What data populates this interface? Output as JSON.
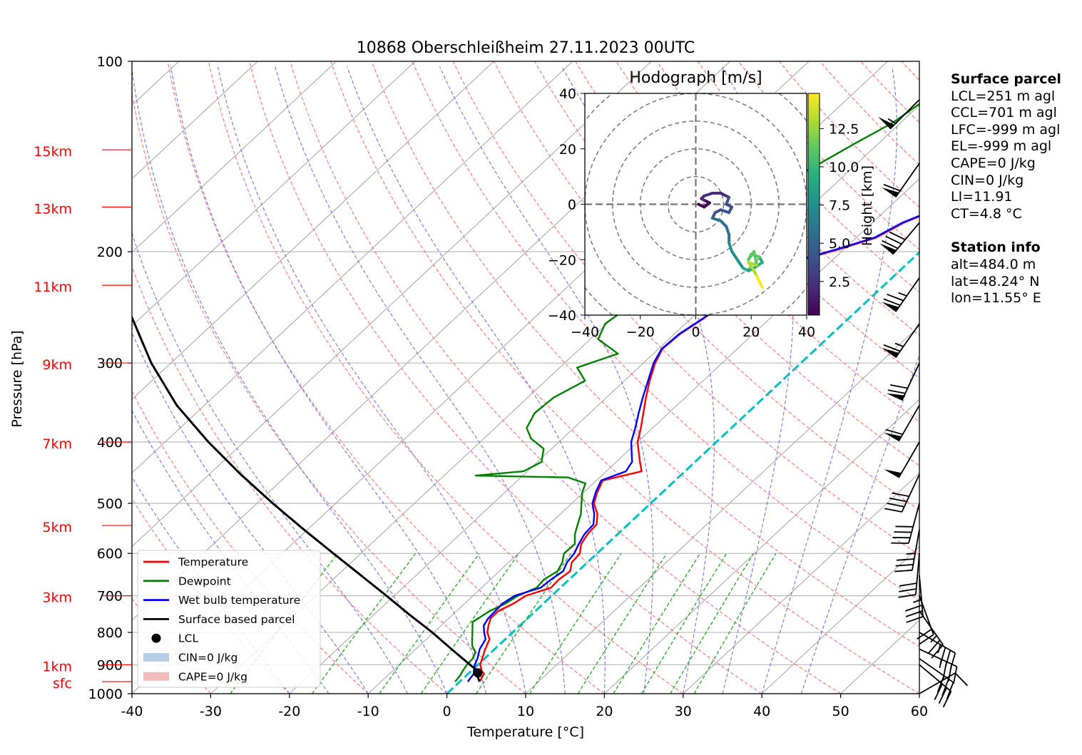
{
  "title": "10868 Oberschleißheim 27.11.2023 00UTC",
  "colors": {
    "temperature": "#ff0000",
    "dewpoint": "#008000",
    "wetbulb": "#0000ff",
    "parcel": "#000000",
    "dry_adiabat": "#ff6666",
    "moist_adiabat": "#6666ff",
    "mixing_ratio": "#22aa22",
    "isotherm": "#aaaaaa",
    "zero_isotherm": "#00c0c0",
    "height_label": "#ff0000"
  },
  "chart_data": {
    "type": "line",
    "subtype": "skew-T log-p sounding",
    "title": "10868 Oberschleißheim 27.11.2023 00UTC",
    "xlabel": "Temperature [°C]",
    "ylabel": "Pressure [hPa]",
    "xlim": [
      -40,
      60
    ],
    "ylim": [
      1000,
      100
    ],
    "y_scale": "log",
    "grid": true,
    "legend_position": "bottom-left",
    "x_ticks": [
      "-40",
      "-30",
      "-20",
      "-10",
      "0",
      "10",
      "20",
      "30",
      "40",
      "50",
      "60"
    ],
    "y_ticks": [
      "100",
      "200",
      "300",
      "400",
      "500",
      "600",
      "700",
      "800",
      "900",
      "1000"
    ],
    "height_ticks": [
      {
        "label": "15km",
        "p": 138
      },
      {
        "label": "13km",
        "p": 170
      },
      {
        "label": "11km",
        "p": 226
      },
      {
        "label": "9km",
        "p": 300
      },
      {
        "label": "7km",
        "p": 400
      },
      {
        "label": "5km",
        "p": 542
      },
      {
        "label": "3km",
        "p": 700
      },
      {
        "label": "1km",
        "p": 900
      },
      {
        "label": "sfc",
        "p": 957
      }
    ],
    "series": [
      {
        "name": "Temperature",
        "points": [
          [
            957,
            2.5
          ],
          [
            930,
            2.0
          ],
          [
            920,
            1.3
          ],
          [
            900,
            0.3
          ],
          [
            880,
            -0.3
          ],
          [
            850,
            -1.2
          ],
          [
            820,
            -2.0
          ],
          [
            800,
            -3.2
          ],
          [
            780,
            -4.0
          ],
          [
            760,
            -4.7
          ],
          [
            740,
            -4.7
          ],
          [
            720,
            -3.8
          ],
          [
            700,
            -3.3
          ],
          [
            680,
            -1.2
          ],
          [
            660,
            -1.3
          ],
          [
            640,
            -1.0
          ],
          [
            620,
            -2.0
          ],
          [
            600,
            -2.2
          ],
          [
            580,
            -3.3
          ],
          [
            560,
            -3.8
          ],
          [
            540,
            -4.0
          ],
          [
            520,
            -5.3
          ],
          [
            500,
            -7.2
          ],
          [
            480,
            -8.3
          ],
          [
            460,
            -9.2
          ],
          [
            445,
            -5.5
          ],
          [
            430,
            -7.0
          ],
          [
            400,
            -10.0
          ],
          [
            380,
            -11.5
          ],
          [
            360,
            -13.2
          ],
          [
            340,
            -15.0
          ],
          [
            320,
            -16.8
          ],
          [
            300,
            -18.5
          ],
          [
            285,
            -19.5
          ],
          [
            270,
            -19.3
          ],
          [
            255,
            -18.4
          ],
          [
            240,
            -17.8
          ],
          [
            225,
            -18.0
          ],
          [
            215,
            -14.5
          ],
          [
            205,
            -13.5
          ],
          [
            198,
            -10.5
          ],
          [
            190,
            -7.5
          ],
          [
            180,
            -6.0
          ],
          [
            170,
            -3.2
          ],
          [
            162,
            -3.0
          ],
          [
            155,
            -2.7
          ],
          [
            148,
            -1.5
          ],
          [
            142,
            0.5
          ],
          [
            135,
            1.0
          ],
          [
            128,
            2.5
          ],
          [
            122,
            3.7
          ],
          [
            116,
            4.5
          ],
          [
            110,
            5.3
          ]
        ]
      },
      {
        "name": "Dewpoint",
        "points": [
          [
            957,
            -0.6
          ],
          [
            935,
            -0.8
          ],
          [
            920,
            -1.1
          ],
          [
            900,
            -1.4
          ],
          [
            880,
            -1.5
          ],
          [
            860,
            -2.0
          ],
          [
            840,
            -3.3
          ],
          [
            820,
            -4.2
          ],
          [
            800,
            -5.1
          ],
          [
            770,
            -6.5
          ],
          [
            740,
            -5.8
          ],
          [
            720,
            -4.8
          ],
          [
            700,
            -4.3
          ],
          [
            680,
            -3.0
          ],
          [
            660,
            -3.2
          ],
          [
            640,
            -2.6
          ],
          [
            620,
            -3.2
          ],
          [
            600,
            -4.2
          ],
          [
            580,
            -4.1
          ],
          [
            560,
            -5.4
          ],
          [
            540,
            -6.4
          ],
          [
            520,
            -7.4
          ],
          [
            500,
            -8.8
          ],
          [
            480,
            -10.2
          ],
          [
            465,
            -11.0
          ],
          [
            455,
            -14.0
          ],
          [
            452,
            -26.0
          ],
          [
            445,
            -20.5
          ],
          [
            430,
            -19.5
          ],
          [
            410,
            -21.0
          ],
          [
            395,
            -24.0
          ],
          [
            380,
            -26.0
          ],
          [
            360,
            -27.0
          ],
          [
            340,
            -26.7
          ],
          [
            320,
            -25.0
          ],
          [
            305,
            -27.8
          ],
          [
            290,
            -24.5
          ],
          [
            275,
            -29.0
          ],
          [
            260,
            -30.2
          ],
          [
            245,
            -29.5
          ],
          [
            235,
            -25.0
          ],
          [
            225,
            -30.2
          ],
          [
            215,
            -29.0
          ],
          [
            205,
            -28.5
          ],
          [
            195,
            -27.5
          ],
          [
            185,
            -30.0
          ],
          [
            175,
            -29.2
          ],
          [
            165,
            -28.5
          ],
          [
            155,
            -26.5
          ],
          [
            145,
            -24.7
          ],
          [
            135,
            -23.0
          ],
          [
            125,
            -21.0
          ],
          [
            115,
            -20.0
          ],
          [
            110,
            -19.4
          ]
        ]
      },
      {
        "name": "Wet bulb temperature",
        "points": [
          [
            957,
            1.0
          ],
          [
            930,
            0.7
          ],
          [
            920,
            0.3
          ],
          [
            900,
            -0.4
          ],
          [
            880,
            -0.9
          ],
          [
            850,
            -1.9
          ],
          [
            820,
            -2.5
          ],
          [
            800,
            -3.6
          ],
          [
            780,
            -4.6
          ],
          [
            760,
            -5.0
          ],
          [
            740,
            -5.1
          ],
          [
            720,
            -5.2
          ],
          [
            700,
            -4.7
          ],
          [
            680,
            -2.5
          ],
          [
            660,
            -2.3
          ],
          [
            640,
            -1.9
          ],
          [
            620,
            -2.6
          ],
          [
            600,
            -2.9
          ],
          [
            580,
            -3.6
          ],
          [
            560,
            -4.2
          ],
          [
            540,
            -4.4
          ],
          [
            520,
            -5.7
          ],
          [
            500,
            -7.4
          ],
          [
            480,
            -8.5
          ],
          [
            460,
            -9.4
          ],
          [
            445,
            -7.5
          ],
          [
            430,
            -8.0
          ],
          [
            400,
            -10.8
          ],
          [
            380,
            -12.2
          ],
          [
            360,
            -13.8
          ],
          [
            340,
            -15.4
          ],
          [
            320,
            -17.0
          ],
          [
            300,
            -18.7
          ],
          [
            285,
            -19.6
          ],
          [
            270,
            -19.4
          ],
          [
            255,
            -18.5
          ],
          [
            240,
            -17.9
          ],
          [
            225,
            -18.1
          ],
          [
            215,
            -14.8
          ],
          [
            205,
            -13.8
          ],
          [
            198,
            -10.8
          ],
          [
            190,
            -7.7
          ],
          [
            180,
            -6.2
          ],
          [
            170,
            -3.4
          ],
          [
            162,
            -3.2
          ],
          [
            155,
            -2.9
          ],
          [
            148,
            -1.7
          ],
          [
            142,
            0.3
          ],
          [
            135,
            0.8
          ],
          [
            128,
            2.3
          ],
          [
            122,
            3.5
          ],
          [
            116,
            4.3
          ],
          [
            110,
            5.1
          ]
        ]
      },
      {
        "name": "Surface based parcel",
        "points": [
          [
            957,
            2.5
          ],
          [
            940,
            1.6
          ],
          [
            920,
            0.8
          ],
          [
            900,
            -1.0
          ],
          [
            850,
            -5.5
          ],
          [
            800,
            -10.2
          ],
          [
            750,
            -15.5
          ],
          [
            700,
            -21.0
          ],
          [
            650,
            -27.0
          ],
          [
            600,
            -33.5
          ],
          [
            550,
            -40.5
          ],
          [
            500,
            -48.0
          ],
          [
            450,
            -56.0
          ],
          [
            400,
            -64.5
          ],
          [
            350,
            -73.5
          ],
          [
            300,
            -82.5
          ],
          [
            250,
            -92.0
          ]
        ]
      }
    ],
    "lcl_point": {
      "name": "LCL",
      "p": 927,
      "t": 1.1
    },
    "cin_label": "CIN=0 J/kg",
    "cape_label": "CAPE=0 J/kg",
    "winds": [
      {
        "p": 1000,
        "speed": 10,
        "dir": 60
      },
      {
        "p": 900,
        "speed": 30,
        "dir": 130
      },
      {
        "p": 880,
        "speed": 30,
        "dir": 125
      },
      {
        "p": 850,
        "speed": 35,
        "dir": 115
      },
      {
        "p": 800,
        "speed": 35,
        "dir": 120
      },
      {
        "p": 740,
        "speed": 25,
        "dir": 145
      },
      {
        "p": 700,
        "speed": 20,
        "dir": 160
      },
      {
        "p": 650,
        "speed": 35,
        "dir": 175
      },
      {
        "p": 600,
        "speed": 30,
        "dir": 185
      },
      {
        "p": 550,
        "speed": 35,
        "dir": 190
      },
      {
        "p": 500,
        "speed": 40,
        "dir": 195
      },
      {
        "p": 450,
        "speed": 40,
        "dir": 205
      },
      {
        "p": 400,
        "speed": 50,
        "dir": 210
      },
      {
        "p": 350,
        "speed": 60,
        "dir": 210
      },
      {
        "p": 300,
        "speed": 70,
        "dir": 205
      },
      {
        "p": 260,
        "speed": 65,
        "dir": 215
      },
      {
        "p": 220,
        "speed": 75,
        "dir": 215
      },
      {
        "p": 180,
        "speed": 80,
        "dir": 220
      },
      {
        "p": 145,
        "speed": 60,
        "dir": 215
      },
      {
        "p": 115,
        "speed": 55,
        "dir": 225
      }
    ]
  },
  "hodograph": {
    "title": "Hodograph [m/s]",
    "xlim": [
      -40,
      40
    ],
    "ylim": [
      -40,
      40
    ],
    "x_ticks": [
      "−40",
      "−20",
      "0",
      "20",
      "40"
    ],
    "y_ticks": [
      "40",
      "20",
      "0",
      "−20",
      "−40"
    ],
    "ring_radii": [
      10,
      20,
      30,
      40,
      50
    ],
    "colorbar_label": "Height [km]",
    "colorbar_ticks": [
      "2.5",
      "5.0",
      "7.5",
      "10.0",
      "12.5"
    ],
    "colorbar_range": [
      0.3,
      14.8
    ],
    "trace": [
      [
        0.3,
        1,
        0
      ],
      [
        0.6,
        3,
        -1
      ],
      [
        0.9,
        5,
        0.5
      ],
      [
        1.2,
        3,
        1.5
      ],
      [
        1.5,
        2,
        2
      ],
      [
        2,
        3,
        3
      ],
      [
        2.3,
        6,
        4
      ],
      [
        2.6,
        9,
        4
      ],
      [
        3,
        12,
        2.5
      ],
      [
        3.3,
        11,
        0
      ],
      [
        3.6,
        13,
        -1
      ],
      [
        3.9,
        12,
        -3
      ],
      [
        4.2,
        9,
        -2
      ],
      [
        4.5,
        7,
        -3
      ],
      [
        4.8,
        6,
        -5
      ],
      [
        5.2,
        9,
        -6
      ],
      [
        5.6,
        11,
        -8
      ],
      [
        6,
        12,
        -11
      ],
      [
        6.5,
        12,
        -14
      ],
      [
        7,
        13,
        -17
      ],
      [
        7.5,
        15,
        -20
      ],
      [
        8,
        17,
        -23
      ],
      [
        8.5,
        19,
        -24
      ],
      [
        9,
        21,
        -23
      ],
      [
        9.5,
        24,
        -21
      ],
      [
        10,
        23,
        -19
      ],
      [
        10.5,
        20,
        -18
      ],
      [
        11,
        19,
        -20
      ],
      [
        11.5,
        21,
        -17
      ],
      [
        12,
        22,
        -22
      ],
      [
        12.5,
        19,
        -21
      ],
      [
        13,
        21,
        -24
      ],
      [
        13.5,
        22,
        -26
      ],
      [
        14,
        23,
        -28
      ],
      [
        14.5,
        24,
        -30
      ]
    ]
  },
  "legend": {
    "temperature": "Temperature",
    "dewpoint": "Dewpoint",
    "wetbulb": "Wet bulb temperature",
    "parcel": "Surface based parcel",
    "lcl": "LCL",
    "cin": "CIN=0 J/kg",
    "cape": "CAPE=0 J/kg"
  },
  "surface_parcel": {
    "heading": "Surface parcel",
    "lines": [
      "LCL=251 m agl",
      "CCL=701 m agl",
      "LFC=-999 m agl",
      "EL=-999 m agl",
      "CAPE=0 J/kg",
      "CIN=0 J/kg",
      "LI=11.91",
      "CT=4.8 °C"
    ]
  },
  "station_info": {
    "heading": "Station info",
    "lines": [
      "alt=484.0 m",
      "lat=48.24° N",
      "lon=11.55° E"
    ]
  }
}
